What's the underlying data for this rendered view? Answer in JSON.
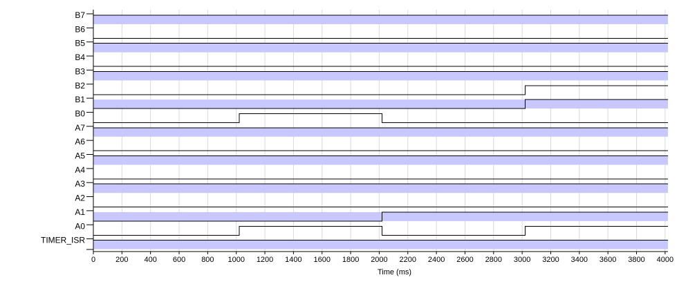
{
  "chart_data": {
    "type": "timing",
    "xlabel": "Time (ms)",
    "xlim": [
      0,
      4020
    ],
    "xticks": [
      0,
      200,
      400,
      600,
      800,
      1000,
      1200,
      1400,
      1600,
      1800,
      2000,
      2200,
      2400,
      2600,
      2800,
      3000,
      3200,
      3400,
      3600,
      3800,
      4000
    ],
    "grid": true,
    "band_color": "#c8c8ff",
    "line_color": "#000000",
    "signals": [
      {
        "name": "B7",
        "shaded": true,
        "transitions": [
          [
            0,
            1
          ]
        ]
      },
      {
        "name": "B6",
        "shaded": false,
        "transitions": [
          [
            0,
            0
          ]
        ]
      },
      {
        "name": "B5",
        "shaded": true,
        "transitions": [
          [
            0,
            1
          ]
        ]
      },
      {
        "name": "B4",
        "shaded": false,
        "transitions": [
          [
            0,
            0
          ]
        ]
      },
      {
        "name": "B3",
        "shaded": true,
        "transitions": [
          [
            0,
            1
          ]
        ]
      },
      {
        "name": "B2",
        "shaded": false,
        "transitions": [
          [
            0,
            0
          ],
          [
            3020,
            1
          ]
        ]
      },
      {
        "name": "B1",
        "shaded": true,
        "transitions": [
          [
            0,
            0
          ],
          [
            3020,
            1
          ]
        ]
      },
      {
        "name": "B0",
        "shaded": false,
        "transitions": [
          [
            0,
            0
          ],
          [
            1020,
            1
          ],
          [
            2020,
            0
          ]
        ]
      },
      {
        "name": "A7",
        "shaded": true,
        "transitions": [
          [
            0,
            1
          ]
        ]
      },
      {
        "name": "A6",
        "shaded": false,
        "transitions": [
          [
            0,
            0
          ]
        ]
      },
      {
        "name": "A5",
        "shaded": true,
        "transitions": [
          [
            0,
            1
          ]
        ]
      },
      {
        "name": "A4",
        "shaded": false,
        "transitions": [
          [
            0,
            0
          ]
        ]
      },
      {
        "name": "A3",
        "shaded": true,
        "transitions": [
          [
            0,
            1
          ]
        ]
      },
      {
        "name": "A2",
        "shaded": false,
        "transitions": [
          [
            0,
            0
          ]
        ]
      },
      {
        "name": "A1",
        "shaded": true,
        "transitions": [
          [
            0,
            0
          ],
          [
            2020,
            1
          ]
        ]
      },
      {
        "name": "A0",
        "shaded": false,
        "transitions": [
          [
            0,
            0
          ],
          [
            1020,
            1
          ],
          [
            2020,
            0
          ],
          [
            3020,
            1
          ]
        ]
      },
      {
        "name": "TIMER_ISR",
        "shaded": true,
        "transitions": [
          [
            0,
            1
          ]
        ]
      }
    ]
  }
}
